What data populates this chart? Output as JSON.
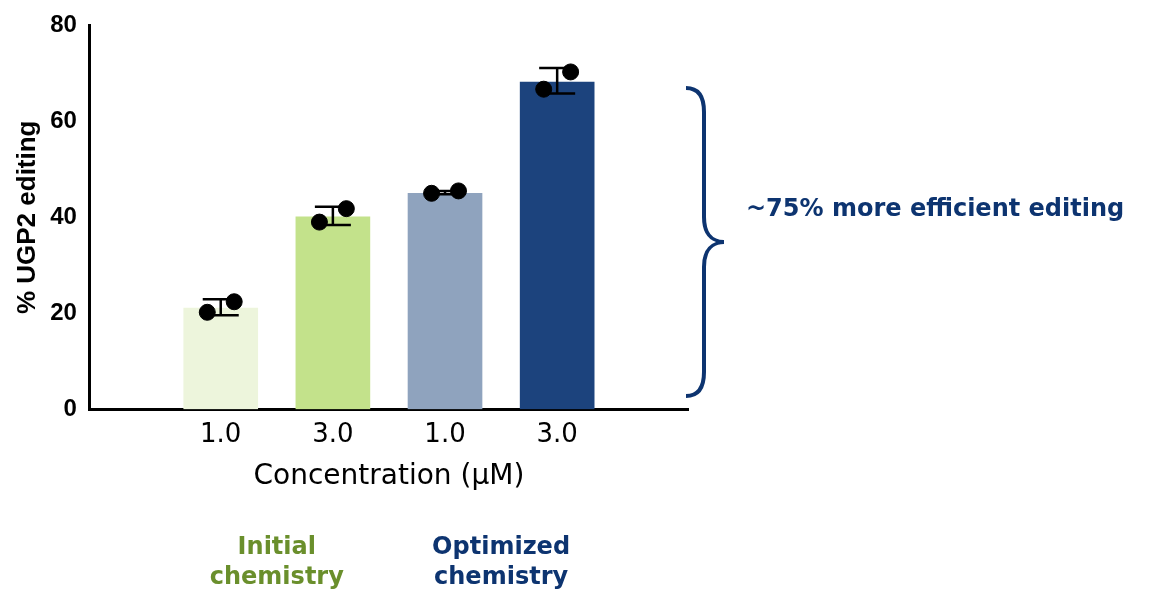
{
  "chart_data": {
    "type": "bar",
    "xlabel": "Concentration (μM)",
    "ylabel": "% UGP2 editing",
    "categories": [
      "1.0",
      "3.0",
      "1.0",
      "3.0"
    ],
    "ylim": [
      0,
      80
    ],
    "yticks": [
      0,
      20,
      40,
      60,
      80
    ],
    "grid": false,
    "legend": false,
    "series": [
      {
        "colors": [
          "#edf5dc",
          "#c3e28b",
          "#8fa3be",
          "#1c437d"
        ],
        "values": [
          21.1,
          40.1,
          45,
          68.2
        ],
        "errors": [
          [
            19.6,
            22.9
          ],
          [
            38.4,
            42.2
          ],
          [
            44.8,
            45.5
          ],
          [
            65.8,
            71.1
          ]
        ]
      },
      {
        "type": "scatter",
        "color": "#000000",
        "marker": "circle",
        "values": [
          20.2,
          39,
          45,
          66.7
        ]
      },
      {
        "type": "scatter",
        "color": "#000000",
        "marker": "circle",
        "values": [
          22.4,
          41.8,
          45.5,
          70.3
        ]
      }
    ],
    "annotations": [
      "Initial chemistry",
      "Optimized chemistry",
      "~75% more efficient editing"
    ]
  }
}
